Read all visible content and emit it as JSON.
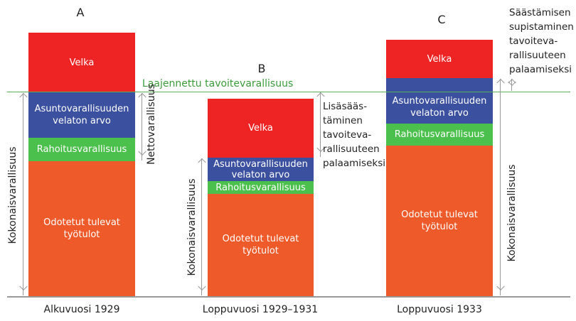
{
  "colors": {
    "debt": "#ee2424",
    "housing": "#3c50a0",
    "financial": "#4cc04c",
    "income": "#ee5a2a",
    "target_line": "#5aae5a"
  },
  "target_line_label": "Laajennettu tavoitevarallisuus",
  "bars": [
    {
      "letter": "A",
      "xlabel": "Alkuvuosi 1929",
      "debt": "Velka",
      "housing": "Asuntovarallisuuden velaton arvo",
      "financial": "Rahoitusvarallisuus",
      "income": "Odotetut tulevat työtulot",
      "total_label": "Kokonaisvarallisuus",
      "net_label": "Nettovarallisuus"
    },
    {
      "letter": "B",
      "xlabel": "Loppuvuosi 1929–1931",
      "debt": "Velka",
      "housing": "Asuntovarallisuuden velaton arvo",
      "financial": "Rahoitusvarallisuus",
      "income": "Odotetut tulevat työtulot",
      "total_label": "Kokonaisvarallisuus",
      "note": "Lisäsääs-\ntäminen\ntavoiteva-\nrallisuuteen\npalaamiseksi"
    },
    {
      "letter": "C",
      "xlabel": "Loppuvuosi 1933",
      "debt": "Velka",
      "housing": "Asuntovarallisuuden velaton arvo",
      "financial": "Rahoitusvarallisuus",
      "income": "Odotetut tulevat työtulot",
      "total_label": "Kokonaisvarallisuus",
      "note": "Säästämisen\nsupistaminen\ntavoiteva-\nrallisuuteen\npalaamiseksi"
    }
  ]
}
